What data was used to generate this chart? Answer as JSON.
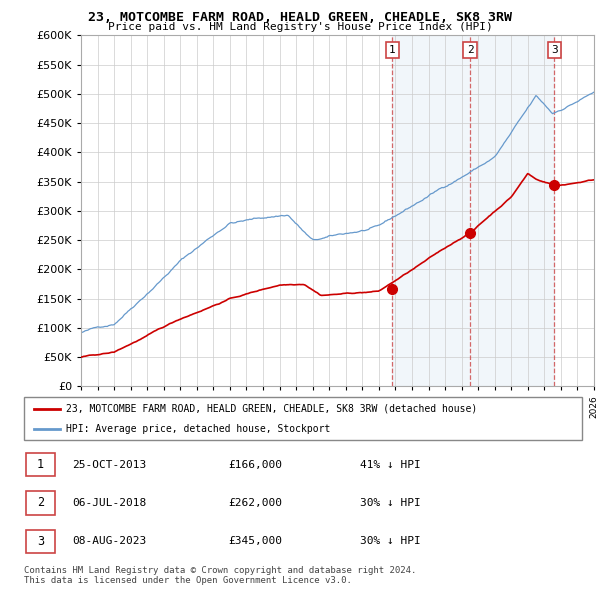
{
  "title": "23, MOTCOMBE FARM ROAD, HEALD GREEN, CHEADLE, SK8 3RW",
  "subtitle": "Price paid vs. HM Land Registry's House Price Index (HPI)",
  "hpi_line_color": "#6699cc",
  "hpi_fill_color": "#ddeeff",
  "price_color": "#cc0000",
  "ylim": [
    0,
    600000
  ],
  "yticks": [
    0,
    50000,
    100000,
    150000,
    200000,
    250000,
    300000,
    350000,
    400000,
    450000,
    500000,
    550000,
    600000
  ],
  "sale_dates": [
    2013.82,
    2018.51,
    2023.6
  ],
  "sale_prices": [
    166000,
    262000,
    345000
  ],
  "sale_labels": [
    "1",
    "2",
    "3"
  ],
  "legend_entries": [
    "23, MOTCOMBE FARM ROAD, HEALD GREEN, CHEADLE, SK8 3RW (detached house)",
    "HPI: Average price, detached house, Stockport"
  ],
  "table_rows": [
    [
      "1",
      "25-OCT-2013",
      "£166,000",
      "41% ↓ HPI"
    ],
    [
      "2",
      "06-JUL-2018",
      "£262,000",
      "30% ↓ HPI"
    ],
    [
      "3",
      "08-AUG-2023",
      "£345,000",
      "30% ↓ HPI"
    ]
  ],
  "footer": "Contains HM Land Registry data © Crown copyright and database right 2024.\nThis data is licensed under the Open Government Licence v3.0.",
  "xmin": 1995,
  "xmax": 2026
}
